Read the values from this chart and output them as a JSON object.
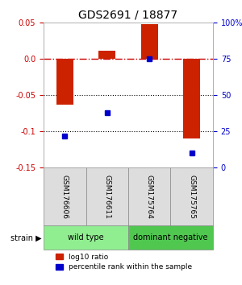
{
  "title": "GDS2691 / 18877",
  "samples": [
    "GSM176606",
    "GSM176611",
    "GSM175764",
    "GSM175765"
  ],
  "log10_ratio": [
    -0.063,
    0.012,
    0.048,
    -0.11
  ],
  "percentile_rank": [
    22,
    38,
    75,
    10
  ],
  "groups": [
    {
      "label": "wild type",
      "samples": [
        0,
        1
      ],
      "color": "#90EE90"
    },
    {
      "label": "dominant negative",
      "samples": [
        2,
        3
      ],
      "color": "#50C850"
    }
  ],
  "ylim_left": [
    -0.15,
    0.05
  ],
  "ylim_right": [
    0,
    100
  ],
  "yticks_left": [
    -0.15,
    -0.1,
    -0.05,
    0.0,
    0.05
  ],
  "yticks_right": [
    0,
    25,
    50,
    75,
    100
  ],
  "bar_color": "#CC2200",
  "dot_color": "#0000CC",
  "ref_line_color": "#CC0000",
  "dotted_line_color": "#000000",
  "bg_color": "#FFFFFF",
  "bar_width": 0.4,
  "bar_box_color": "#CCCCCC",
  "bar_box_facecolor": "#DDDDDD"
}
